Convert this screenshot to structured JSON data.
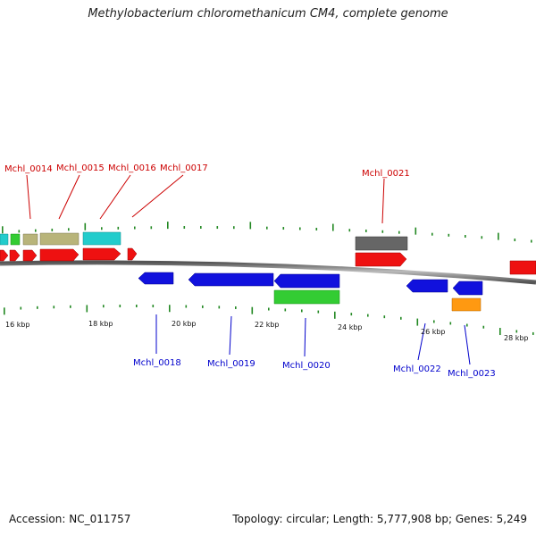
{
  "title": "Methylobacterium chloromethanicum CM4, complete genome",
  "footer": {
    "accession": "Accession: NC_011757",
    "topology": "Topology: circular; Length: 5,777,908 bp; Genes: 5,249"
  },
  "scale_labels": [
    "16 kbp",
    "18 kbp",
    "20 kbp",
    "22 kbp",
    "24 kbp",
    "26 kbp",
    "28 kbp"
  ],
  "colors": {
    "plus_label": "#cc0000",
    "minus_label": "#0000cc",
    "tick": "#228822",
    "backbone": "#8a8a8a",
    "red": "#ee1111",
    "blue": "#1111dd",
    "green": "#33cc33",
    "cyan": "#22cccc",
    "khaki": "#b8b47a",
    "gray": "#666666",
    "orange": "#ff9911"
  },
  "gene_labels": {
    "top": [
      "Mchl_0014",
      "Mchl_0015",
      "Mchl_0016",
      "Mchl_0017",
      "Mchl_0021"
    ],
    "bottom": [
      "Mchl_0018",
      "Mchl_0019",
      "Mchl_0020",
      "Mchl_0022",
      "Mchl_0023"
    ]
  }
}
